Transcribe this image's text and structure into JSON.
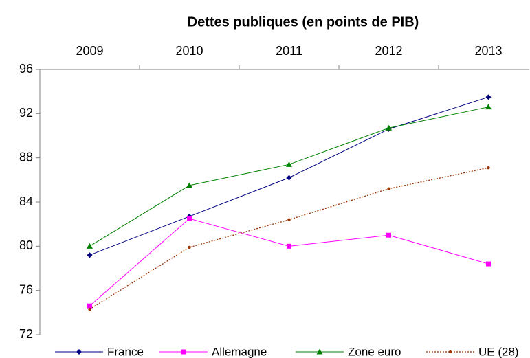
{
  "chart_data": {
    "type": "line",
    "title": "Dettes publiques (en points de PIB)",
    "categories": [
      "2009",
      "2010",
      "2011",
      "2012",
      "2013"
    ],
    "series": [
      {
        "name": "France",
        "color": "#000080",
        "marker": "diamond",
        "values": [
          79.2,
          82.7,
          86.2,
          90.6,
          93.5
        ]
      },
      {
        "name": "Allemagne",
        "color": "#ff00ff",
        "marker": "square",
        "values": [
          74.6,
          82.5,
          80.0,
          81.0,
          78.4
        ]
      },
      {
        "name": "Zone euro",
        "color": "#008000",
        "marker": "triangle",
        "values": [
          80.0,
          85.5,
          87.4,
          90.7,
          92.6
        ]
      },
      {
        "name": "UE (28)",
        "color": "#993300",
        "marker": "circle",
        "dashed": true,
        "values": [
          74.3,
          79.9,
          82.4,
          85.2,
          87.1
        ]
      }
    ],
    "ylim": [
      72,
      96
    ],
    "yticks": [
      72,
      76,
      80,
      84,
      88,
      92,
      96
    ]
  }
}
